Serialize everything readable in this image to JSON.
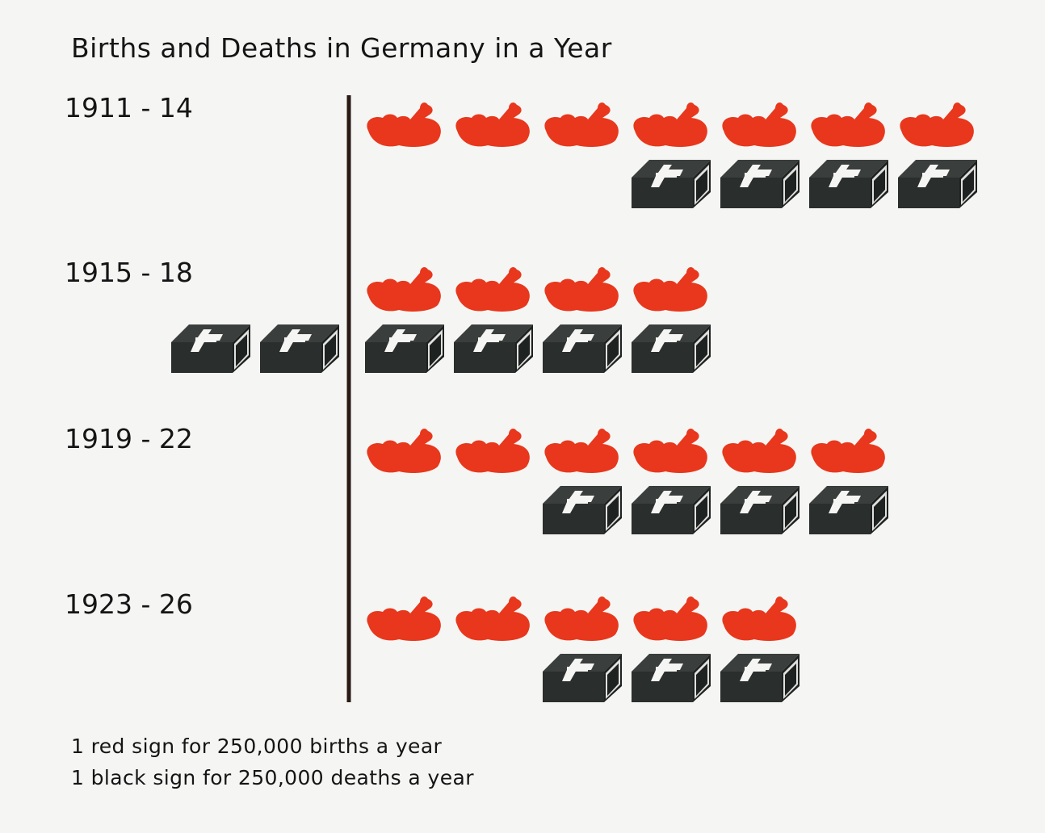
{
  "title": "Births and Deaths in Germany in a Year",
  "legend": {
    "births": "1 red sign for 250,000 births a year",
    "deaths": "1 black sign for 250,000 deaths a year"
  },
  "colors": {
    "births": "#e8371c",
    "deaths": "#2a2e2c",
    "axis": "#2a1a15"
  },
  "icons": {
    "births": "baby-icon",
    "deaths": "coffin-icon"
  },
  "chart_data": {
    "type": "pictograph",
    "title": "Births and Deaths in Germany in a Year",
    "unit_value": 250000,
    "categories": [
      "1911 - 14",
      "1915 - 18",
      "1919 - 22",
      "1923 - 26"
    ],
    "series": [
      {
        "name": "births",
        "signs": [
          7,
          4,
          6,
          5
        ]
      },
      {
        "name": "deaths",
        "signs": [
          4,
          6,
          4,
          3
        ]
      }
    ]
  }
}
